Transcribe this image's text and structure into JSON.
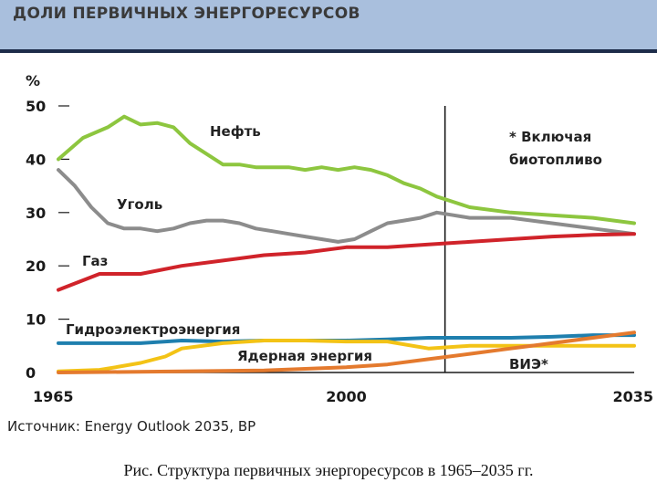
{
  "header": {
    "title": "ДОЛИ ПЕРВИЧНЫХ ЭНЕРГОРЕСУРСОВ"
  },
  "source": "Источник: Energy Outlook 2035, BP",
  "caption": "Рис. Структура первичных энергоресурсов в 1965–2035 гг.",
  "chart_data": {
    "type": "line",
    "ylabel": "%",
    "ylim": [
      0,
      50
    ],
    "xlim": [
      1965,
      2035
    ],
    "x_ticks": [
      "1965",
      "2000",
      "2035"
    ],
    "y_ticks": [
      "0",
      "10",
      "20",
      "30",
      "40",
      "50"
    ],
    "grid": false,
    "forecast_start": 2012,
    "note": "* Включая биотопливо",
    "series": [
      {
        "name": "Нефть",
        "color": "#8dc63f",
        "x": [
          1965,
          1968,
          1971,
          1973,
          1975,
          1977,
          1979,
          1981,
          1983,
          1985,
          1987,
          1989,
          1991,
          1993,
          1995,
          1997,
          1999,
          2001,
          2003,
          2005,
          2007,
          2009,
          2011,
          2013,
          2015,
          2020,
          2025,
          2030,
          2035
        ],
        "y": [
          40,
          44,
          46,
          48,
          46.5,
          46.8,
          46,
          43,
          41,
          39,
          39,
          38.5,
          38.5,
          38.5,
          38,
          38.5,
          38,
          38.5,
          38,
          37,
          35.5,
          34.5,
          33,
          32,
          31,
          30,
          29.5,
          29,
          28
        ]
      },
      {
        "name": "Уголь",
        "color": "#8c8c8c",
        "x": [
          1965,
          1967,
          1969,
          1971,
          1973,
          1975,
          1977,
          1979,
          1981,
          1983,
          1985,
          1987,
          1989,
          1991,
          1993,
          1995,
          1997,
          1999,
          2001,
          2003,
          2005,
          2007,
          2009,
          2011,
          2013,
          2015,
          2020,
          2025,
          2030,
          2035
        ],
        "y": [
          38,
          35,
          31,
          28,
          27,
          27,
          26.5,
          27,
          28,
          28.5,
          28.5,
          28,
          27,
          26.5,
          26,
          25.5,
          25,
          24.5,
          25,
          26.5,
          28,
          28.5,
          29,
          30,
          29.5,
          29,
          29,
          28,
          27,
          26
        ]
      },
      {
        "name": "Газ",
        "color": "#d0232a",
        "x": [
          1965,
          1970,
          1975,
          1980,
          1985,
          1990,
          1995,
          2000,
          2005,
          2010,
          2015,
          2020,
          2025,
          2030,
          2035
        ],
        "y": [
          15.5,
          18.5,
          18.5,
          20,
          21,
          22,
          22.5,
          23.5,
          23.5,
          24,
          24.5,
          25,
          25.5,
          25.8,
          26
        ]
      },
      {
        "name": "Гидроэлектроэнергия",
        "color": "#1f7fae",
        "x": [
          1965,
          1970,
          1975,
          1980,
          1985,
          1990,
          1995,
          2000,
          2005,
          2010,
          2015,
          2020,
          2025,
          2030,
          2035
        ],
        "y": [
          5.5,
          5.5,
          5.5,
          6,
          5.8,
          6,
          6,
          6,
          6.2,
          6.5,
          6.5,
          6.5,
          6.7,
          7,
          7
        ]
      },
      {
        "name": "Ядерная энергия",
        "color": "#f3c316",
        "x": [
          1965,
          1970,
          1972,
          1975,
          1978,
          1980,
          1985,
          1990,
          1995,
          2000,
          2005,
          2010,
          2015,
          2020,
          2025,
          2030,
          2035
        ],
        "y": [
          0.2,
          0.5,
          1,
          1.8,
          3,
          4.5,
          5.5,
          6,
          6,
          5.8,
          5.8,
          4.5,
          5,
          5,
          5,
          5,
          5
        ]
      },
      {
        "name": "ВИЭ*",
        "color": "#e47a2e",
        "x": [
          1965,
          1980,
          1990,
          2000,
          2005,
          2010,
          2015,
          2020,
          2025,
          2030,
          2035
        ],
        "y": [
          0,
          0.2,
          0.4,
          1,
          1.5,
          2.5,
          3.5,
          4.5,
          5.5,
          6.5,
          7.5
        ]
      }
    ]
  }
}
